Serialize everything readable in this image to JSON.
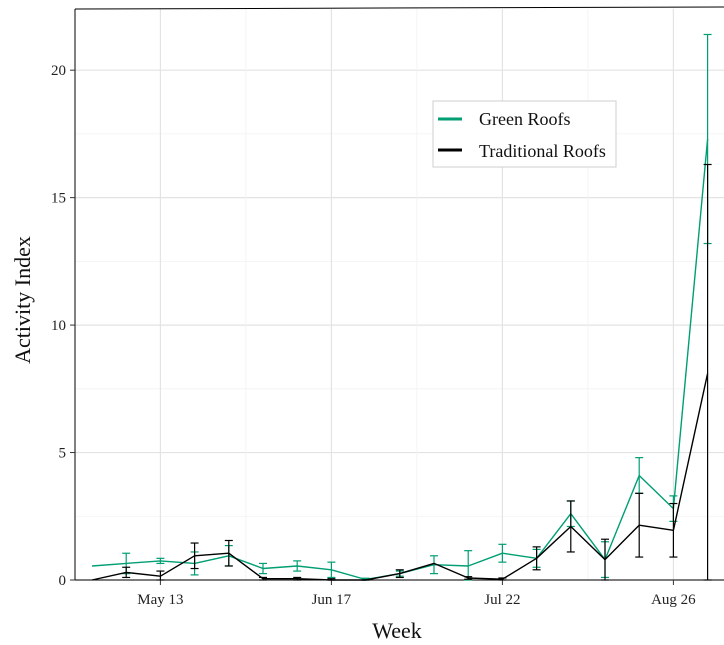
{
  "chart_data": {
    "type": "line",
    "title": "",
    "xlabel": "Week",
    "ylabel": "Activity Index",
    "x_tick_labels": [
      "May 13",
      "Jun 17",
      "Jul 22",
      "Aug 26"
    ],
    "y_tick_labels": [
      "0",
      "5",
      "10",
      "15",
      "20"
    ],
    "ylim": [
      0,
      22.4
    ],
    "grid": true,
    "legend_position": "top-right",
    "x": [
      "Apr 29",
      "May 6",
      "May 13",
      "May 20",
      "May 27",
      "Jun 3",
      "Jun 10",
      "Jun 17",
      "Jun 24",
      "Jul 1",
      "Jul 8",
      "Jul 15",
      "Jul 22",
      "Jul 29",
      "Aug 5",
      "Aug 12",
      "Aug 19",
      "Aug 26",
      "Sep 2"
    ],
    "series": [
      {
        "name": "Green Roofs",
        "color": "#009E73",
        "values": [
          0.55,
          0.65,
          0.75,
          0.65,
          0.95,
          0.45,
          0.55,
          0.4,
          0.02,
          0.25,
          0.6,
          0.55,
          1.05,
          0.85,
          2.6,
          0.8,
          4.1,
          2.8,
          17.3
        ],
        "error": [
          0.0,
          0.4,
          0.1,
          0.45,
          0.4,
          0.2,
          0.2,
          0.3,
          0.05,
          0.1,
          0.35,
          0.6,
          0.35,
          0.35,
          0.5,
          0.7,
          0.7,
          0.5,
          4.1
        ]
      },
      {
        "name": "Traditional Roofs",
        "color": "#000000",
        "values": [
          -0.1,
          0.3,
          0.15,
          0.95,
          1.05,
          0.05,
          0.05,
          0.0,
          -0.05,
          0.25,
          0.65,
          0.08,
          0.03,
          0.85,
          2.1,
          0.8,
          2.15,
          1.95,
          8.1
        ],
        "error": [
          0.0,
          0.2,
          0.2,
          0.5,
          0.5,
          0.05,
          0.05,
          0.05,
          0.05,
          0.15,
          0.0,
          0.05,
          0.05,
          0.45,
          1.0,
          0.8,
          1.25,
          1.05,
          8.2
        ]
      }
    ]
  }
}
